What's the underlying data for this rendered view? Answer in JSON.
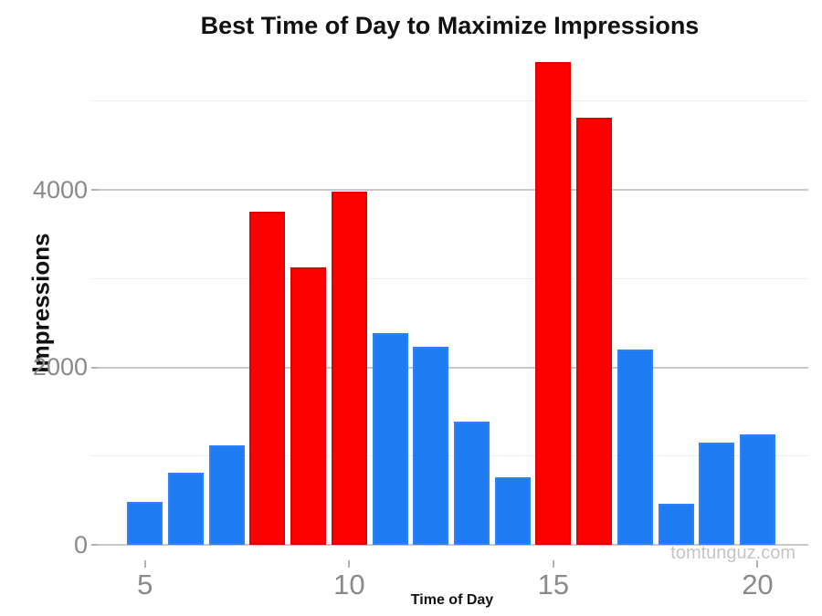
{
  "page": {
    "background_color": "#ffffff",
    "watermark": "tomtunguz.com"
  },
  "chart_data": {
    "type": "bar",
    "title": "Best Time of Day to Maximize Impressions",
    "xlabel": "Time of Day",
    "ylabel": "Impressions",
    "x": [
      5,
      6,
      7,
      8,
      9,
      10,
      11,
      12,
      13,
      14,
      15,
      16,
      17,
      18,
      19,
      20
    ],
    "values": [
      480,
      810,
      1120,
      3750,
      3130,
      3980,
      2390,
      2230,
      1390,
      760,
      5440,
      4810,
      2200,
      460,
      1150,
      1240
    ],
    "bar_colors": [
      "blue",
      "blue",
      "blue",
      "red",
      "red",
      "red",
      "blue",
      "blue",
      "blue",
      "blue",
      "red",
      "red",
      "blue",
      "blue",
      "blue",
      "blue"
    ],
    "highlighted_hours": [
      8,
      9,
      10,
      15,
      16
    ],
    "palette": {
      "blue": "#1E7BF2",
      "red": "#FB0100",
      "grid_major": "#c9c9c9",
      "grid_minor": "#ededed",
      "axis_text": "#8a8a8a",
      "title_text": "#111111",
      "watermark_text": "#c5c5c5"
    },
    "ylim": [
      0,
      5600
    ],
    "y_major_ticks": [
      0,
      2000,
      4000
    ],
    "y_minor_gridlines": [
      1000,
      3000,
      5000
    ],
    "x_tick_labels": [
      5,
      10,
      15,
      20
    ],
    "grid": "horizontal gridlines only, white panel background",
    "legend": "none",
    "watermark": "tomtunguz.com"
  }
}
